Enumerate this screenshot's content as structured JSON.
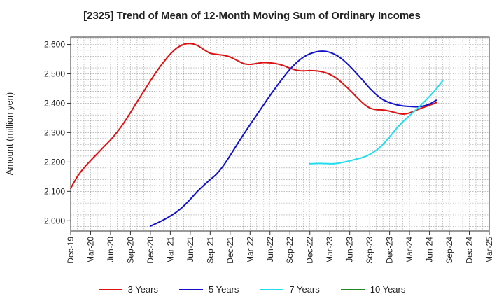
{
  "chart_data": {
    "type": "line",
    "title": "[2325]  Trend of Mean of 12-Month Moving Sum of Ordinary Incomes",
    "xlabel": "",
    "ylabel": "Amount (million yen)",
    "ylim": [
      1965,
      2625
    ],
    "yticks": [
      2000,
      2100,
      2200,
      2300,
      2400,
      2500,
      2600
    ],
    "ytick_labels": [
      "2,000",
      "2,100",
      "2,200",
      "2,300",
      "2,400",
      "2,500",
      "2,600"
    ],
    "xtick_labels": [
      "Dec-19",
      "Mar-20",
      "Jun-20",
      "Sep-20",
      "Dec-20",
      "Mar-21",
      "Jun-21",
      "Sep-21",
      "Dec-21",
      "Mar-22",
      "Jun-22",
      "Sep-22",
      "Dec-22",
      "Mar-23",
      "Jun-23",
      "Sep-23",
      "Dec-23",
      "Mar-24",
      "Jun-24",
      "Sep-24",
      "Dec-24",
      "Mar-25"
    ],
    "grid": true,
    "series": [
      {
        "name": "3 Years",
        "color": "#dd1111",
        "start_index": 0,
        "values": [
          2110,
          2150,
          2180,
          2205,
          2228,
          2252,
          2275,
          2302,
          2333,
          2368,
          2405,
          2440,
          2476,
          2510,
          2540,
          2567,
          2588,
          2600,
          2603,
          2597,
          2583,
          2570,
          2566,
          2563,
          2557,
          2546,
          2535,
          2532,
          2535,
          2538,
          2537,
          2534,
          2528,
          2519,
          2512,
          2510,
          2511,
          2510,
          2506,
          2498,
          2485,
          2466,
          2445,
          2422,
          2400,
          2384,
          2378,
          2377,
          2373,
          2367,
          2363,
          2367,
          2376,
          2385,
          2393,
          2402
        ]
      },
      {
        "name": "5 Years",
        "color": "#1111cc",
        "start_index": 12,
        "values": [
          1982,
          1992,
          2003,
          2016,
          2031,
          2050,
          2073,
          2098,
          2120,
          2140,
          2160,
          2188,
          2222,
          2258,
          2293,
          2327,
          2360,
          2393,
          2426,
          2457,
          2487,
          2515,
          2538,
          2556,
          2568,
          2575,
          2577,
          2573,
          2563,
          2547,
          2526,
          2502,
          2477,
          2451,
          2429,
          2412,
          2402,
          2395,
          2391,
          2389,
          2388,
          2390,
          2397,
          2410
        ]
      },
      {
        "name": "7 Years",
        "color": "#22ddee",
        "start_index": 36,
        "values": [
          2194,
          2195,
          2195,
          2194,
          2195,
          2199,
          2204,
          2210,
          2216,
          2226,
          2240,
          2260,
          2285,
          2313,
          2337,
          2358,
          2378,
          2400,
          2423,
          2448,
          2477
        ]
      },
      {
        "name": "10 Years",
        "color": "#228822",
        "start_index": 0,
        "values": []
      }
    ]
  }
}
